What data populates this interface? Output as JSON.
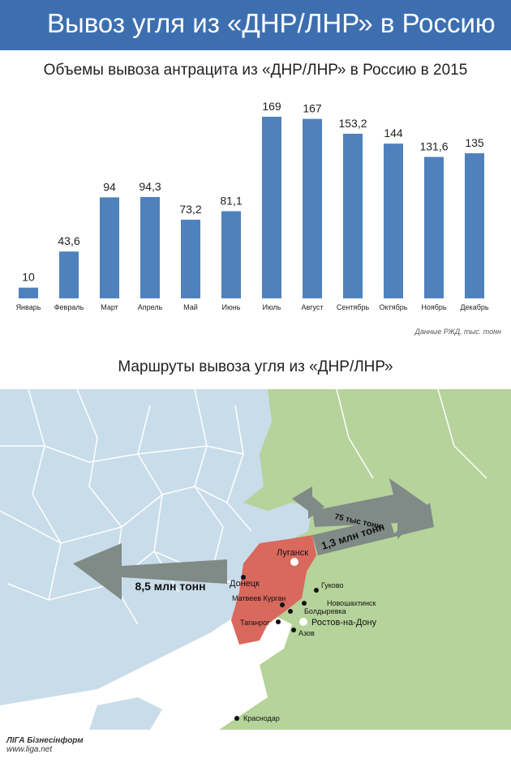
{
  "header": {
    "title": "Вывоз угля из «ДНР/ЛНР» в Россию",
    "band_color": "#3d6fb0"
  },
  "chart_data": {
    "type": "bar",
    "title": "Объемы вывоза антрацита из «ДНР/ЛНР» в Россию в 2015",
    "categories": [
      "Январь",
      "Февраль",
      "Март",
      "Апрель",
      "Май",
      "Июнь",
      "Июль",
      "Август",
      "Сентябрь",
      "Октябрь",
      "Ноябрь",
      "Декабрь"
    ],
    "values": [
      10,
      43.6,
      94,
      94.3,
      73.2,
      81.1,
      169,
      167,
      153.2,
      144,
      131.6,
      135
    ],
    "labels": [
      "10",
      "43,6",
      "94",
      "94,3",
      "73,2",
      "81,1",
      "169",
      "167",
      "153,2",
      "144",
      "131,6",
      "135"
    ],
    "ylim": [
      0,
      169
    ],
    "bar_color": "#4f81bd",
    "source_note": "Данные РЖД, тыс. тонн"
  },
  "map": {
    "title": "Маршруты вывоза угля из «ДНР/ЛНР»",
    "colors": {
      "ukraine": "#c9dcea",
      "russia": "#b5d39a",
      "occupied": "#d9685d",
      "sea": "#ffffff",
      "arrow": "#808a86"
    },
    "arrows": {
      "west": "8,5 млн тонн",
      "northeast": "75 тыс тонн",
      "east": "1,3 млн тонн"
    },
    "cities": {
      "lugansk": "Луганск",
      "donetsk": "Донецк",
      "gukovo": "Гуково",
      "matveev_kurgan": "Матвеев Курган",
      "novoshakhtinsk": "Новошахтинск",
      "boldyrevka": "Болдыревка",
      "taganrog": "Таганрог",
      "rostov": "Ростов-на-Дону",
      "azov": "Азов",
      "krasnodar": "Краснодар"
    }
  },
  "footer": {
    "brand": "ЛІГА Бізнесінформ",
    "url": "www.liga.net"
  }
}
